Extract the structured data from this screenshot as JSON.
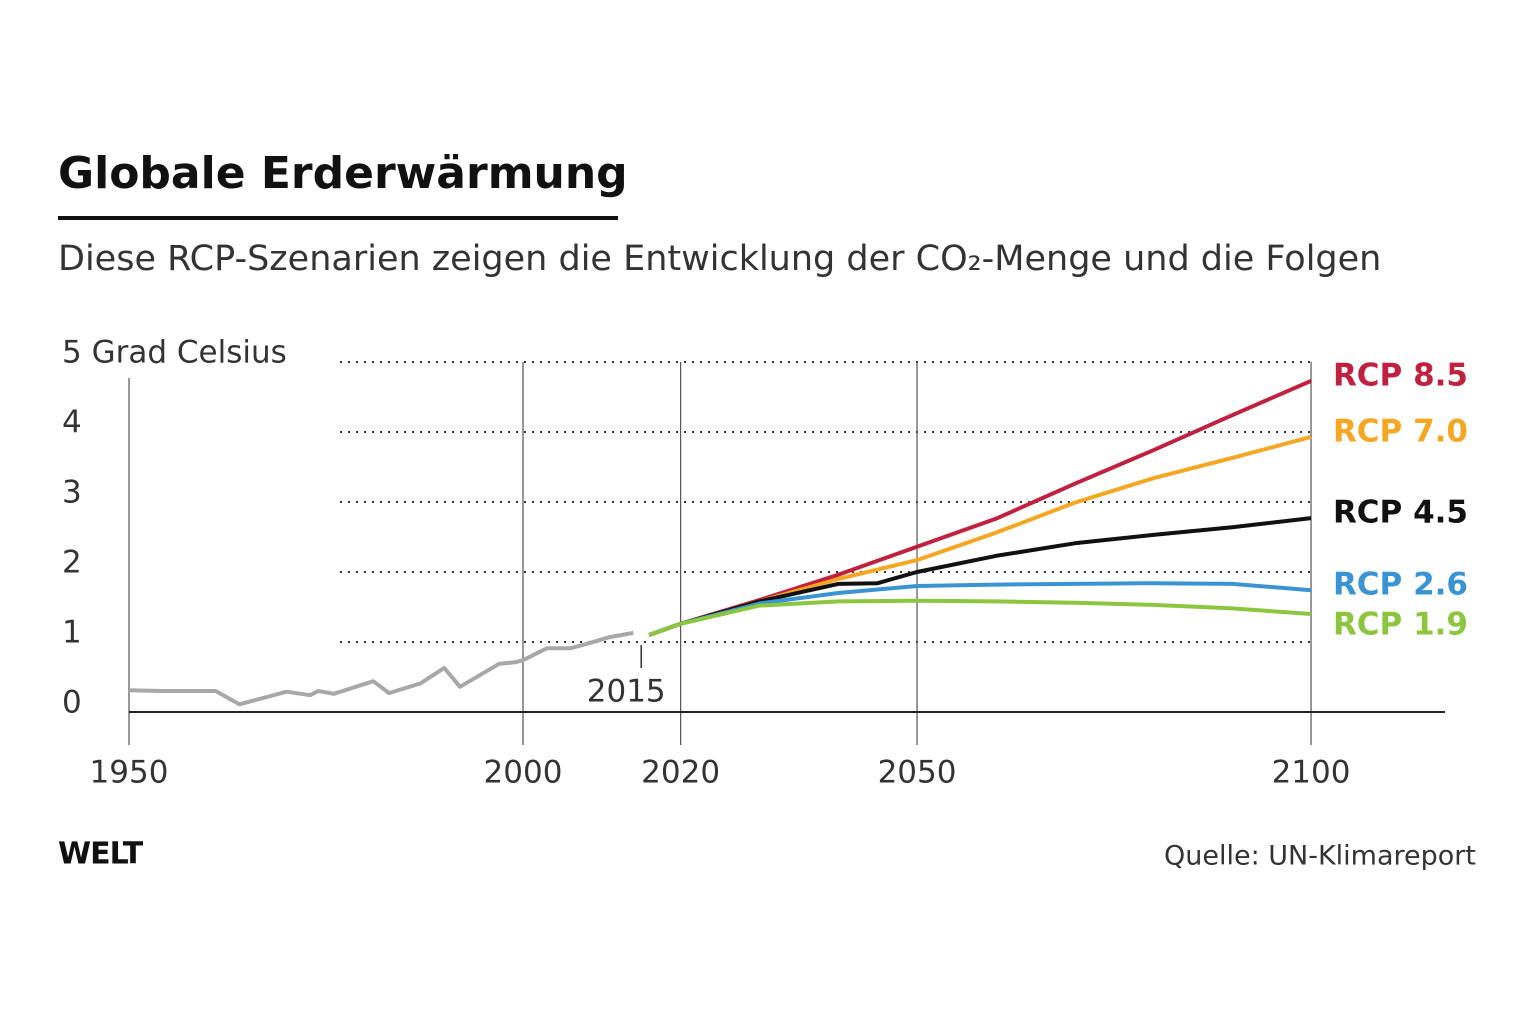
{
  "title": "Globale Erderwärmung",
  "subtitle": "Diese RCP-Szenarien zeigen die Entwicklung der CO₂-Menge und die Folgen",
  "logo": "WELT",
  "source": "Quelle: UN-Klimareport",
  "chart_data": {
    "type": "line",
    "xlim": [
      1950,
      2117
    ],
    "xticks": [
      1950,
      2000,
      2020,
      2050,
      2100
    ],
    "ylim": [
      0,
      5
    ],
    "yticks": [
      0,
      1,
      2,
      3,
      4,
      {
        "value": 5,
        "label": "5 Grad Celsius"
      }
    ],
    "grid": true,
    "highlight_x": 2015,
    "series": [
      {
        "color": "#a8a8a8",
        "x": [
          1950,
          1954,
          1961,
          1964,
          1970,
          1973,
          1974,
          1976,
          1981,
          1983,
          1987,
          1990,
          1992,
          1997,
          1999,
          2000,
          2003,
          2006,
          2008,
          2011,
          2014
        ],
        "values": [
          0.31,
          0.3,
          0.3,
          0.11,
          0.29,
          0.24,
          0.3,
          0.26,
          0.44,
          0.27,
          0.41,
          0.63,
          0.36,
          0.69,
          0.71,
          0.74,
          0.91,
          0.91,
          0.97,
          1.07,
          1.13
        ]
      },
      {
        "name": "RCP 8.5",
        "color": "#c0213f",
        "x": [
          2016,
          2020,
          2030,
          2040,
          2050,
          2060,
          2070,
          2080,
          2090,
          2100
        ],
        "values": [
          1.1,
          1.26,
          1.6,
          1.96,
          2.36,
          2.76,
          3.26,
          3.74,
          4.24,
          4.73
        ]
      },
      {
        "name": "RCP 7.0",
        "color": "#f5a623",
        "x": [
          2016,
          2020,
          2030,
          2040,
          2050,
          2060,
          2070,
          2080,
          2090,
          2100
        ],
        "values": [
          1.1,
          1.26,
          1.58,
          1.9,
          2.17,
          2.56,
          2.99,
          3.34,
          3.63,
          3.93
        ]
      },
      {
        "name": "RCP 4.5",
        "color": "#111111",
        "x": [
          2016,
          2020,
          2030,
          2040,
          2045,
          2050,
          2060,
          2070,
          2080,
          2090,
          2100
        ],
        "values": [
          1.1,
          1.26,
          1.58,
          1.83,
          1.84,
          2.0,
          2.23,
          2.41,
          2.53,
          2.64,
          2.77
        ]
      },
      {
        "name": "RCP 2.6",
        "color": "#3a94d4",
        "x": [
          2016,
          2020,
          2030,
          2040,
          2050,
          2060,
          2070,
          2080,
          2090,
          2100
        ],
        "values": [
          1.1,
          1.26,
          1.55,
          1.7,
          1.8,
          1.82,
          1.83,
          1.84,
          1.83,
          1.74
        ]
      },
      {
        "name": "RCP 1.9",
        "color": "#8cc63f",
        "x": [
          2016,
          2020,
          2030,
          2040,
          2050,
          2060,
          2070,
          2080,
          2090,
          2100
        ],
        "values": [
          1.1,
          1.26,
          1.52,
          1.58,
          1.59,
          1.58,
          1.56,
          1.53,
          1.48,
          1.4
        ]
      }
    ]
  }
}
